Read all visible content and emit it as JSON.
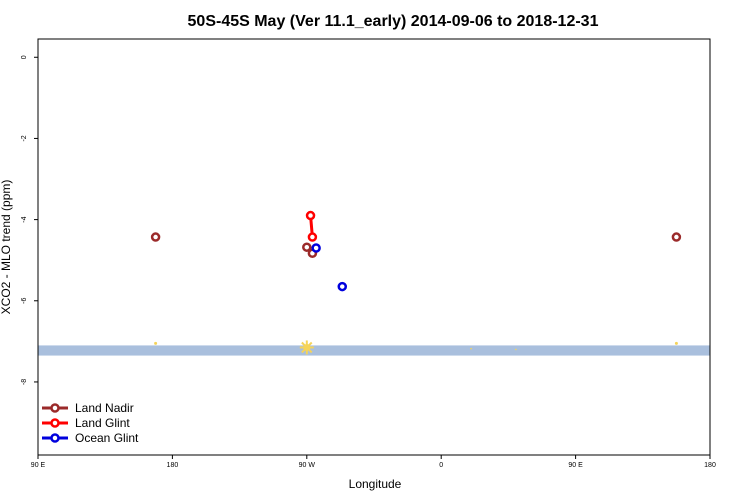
{
  "chart_data": {
    "type": "scatter",
    "title": "50S-45S May (Ver 11.1_early)   2014-09-06 to 2018-12-31",
    "xlabel": "Longitude",
    "ylabel": "XCO2 - MLO trend (ppm)",
    "xlim": [
      90,
      450
    ],
    "ylim": [
      -9.8,
      0.45
    ],
    "x_ticks": [
      {
        "value": 90,
        "label": "90 E"
      },
      {
        "value": 162,
        "label": "180"
      },
      {
        "value": 234,
        "label": "90 W"
      },
      {
        "value": 306,
        "label": "0"
      },
      {
        "value": 378,
        "label": "90 E"
      },
      {
        "value": 450,
        "label": "180"
      }
    ],
    "y_ticks": [
      {
        "value": 0,
        "label": "0"
      },
      {
        "value": -2,
        "label": "-2"
      },
      {
        "value": -4,
        "label": "-4"
      },
      {
        "value": -6,
        "label": "-6"
      },
      {
        "value": -8,
        "label": "-8"
      }
    ],
    "series": [
      {
        "name": "Land Nadir",
        "color": "#9b2a2a",
        "connected": false,
        "points": [
          [
            153,
            -4.43
          ],
          [
            234,
            -4.68
          ],
          [
            237,
            -4.83
          ],
          [
            432,
            -4.43
          ]
        ]
      },
      {
        "name": "Land Glint",
        "color": "#ff0000",
        "connected": true,
        "points": [
          [
            236,
            -3.9
          ],
          [
            237,
            -4.43
          ]
        ]
      },
      {
        "name": "Ocean Glint",
        "color": "#0000dd",
        "connected": false,
        "points": [
          [
            239,
            -4.7
          ],
          [
            253,
            -5.65
          ]
        ]
      }
    ],
    "land_band": {
      "y_range": [
        -7.1,
        -7.35
      ],
      "color": "#a9bfdd"
    },
    "land_dots": {
      "color": "#f5d45a",
      "points": [
        [
          153,
          -7.05,
          1.5
        ],
        [
          234,
          -7.15,
          3.5
        ],
        [
          322,
          -7.18,
          0.8
        ],
        [
          346,
          -7.2,
          0.8
        ],
        [
          432,
          -7.05,
          1.5
        ]
      ]
    },
    "legend": {
      "position": "bottom-left"
    },
    "grid": false
  }
}
